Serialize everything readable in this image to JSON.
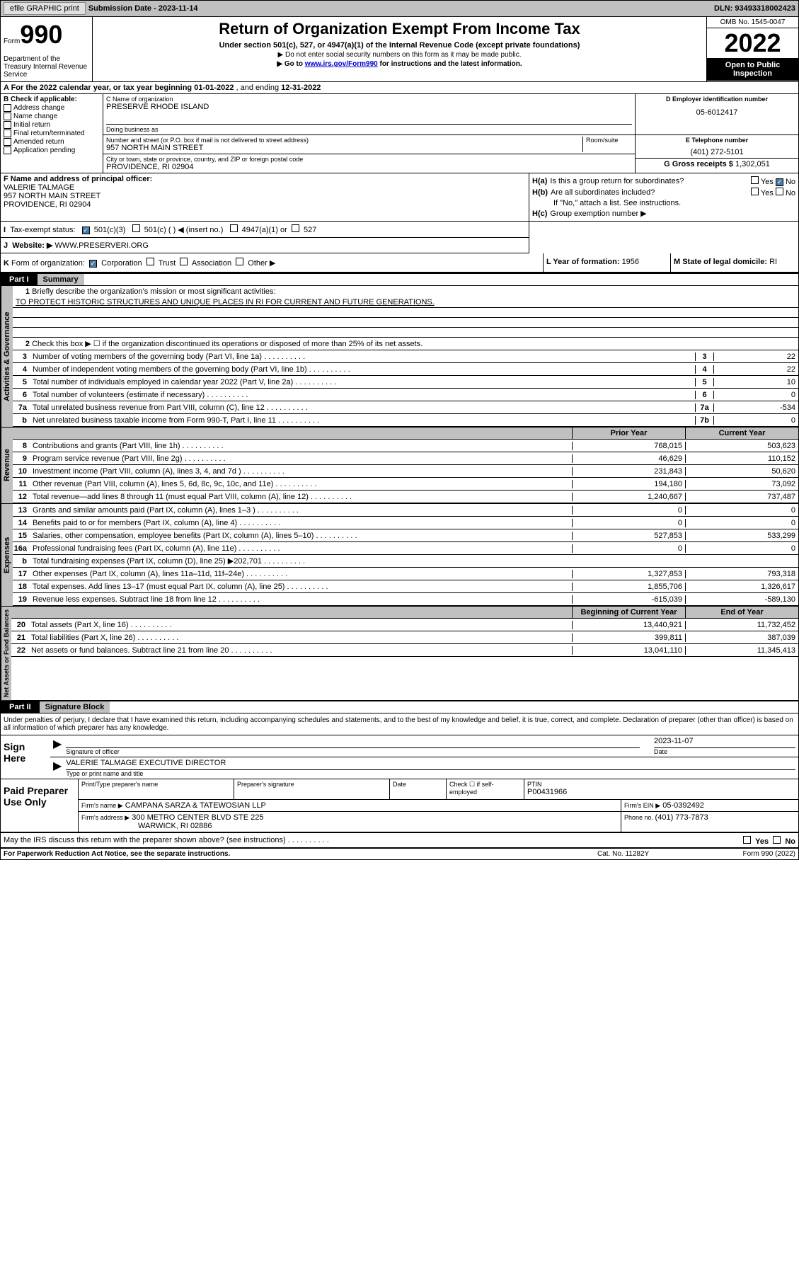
{
  "top": {
    "efile": "efile GRAPHIC print",
    "submission_label": "Submission Date - ",
    "submission_date": "2023-11-14",
    "dln_label": "DLN: ",
    "dln": "93493318002423"
  },
  "header": {
    "form_label": "Form",
    "form_num": "990",
    "title": "Return of Organization Exempt From Income Tax",
    "subtitle": "Under section 501(c), 527, or 4947(a)(1) of the Internal Revenue Code (except private foundations)",
    "note1": "▶ Do not enter social security numbers on this form as it may be made public.",
    "note2_pre": "▶ Go to ",
    "note2_link": "www.irs.gov/Form990",
    "note2_post": " for instructions and the latest information.",
    "dept": "Department of the Treasury Internal Revenue Service",
    "omb": "OMB No. 1545-0047",
    "year": "2022",
    "open_public": "Open to Public Inspection"
  },
  "rowA": {
    "text_pre": "A For the 2022 calendar year, or tax year beginning ",
    "begin": "01-01-2022",
    "mid": " , and ending ",
    "end": "12-31-2022"
  },
  "secB": {
    "label": "B Check if applicable:",
    "items": [
      "Address change",
      "Name change",
      "Initial return",
      "Final return/terminated",
      "Amended return",
      "Application pending"
    ]
  },
  "secC": {
    "label": "C Name of organization",
    "name": "PRESERVE RHODE ISLAND",
    "dba_label": "Doing business as",
    "street_label": "Number and street (or P.O. box if mail is not delivered to street address)",
    "room_label": "Room/suite",
    "street": "957 NORTH MAIN STREET",
    "city_label": "City or town, state or province, country, and ZIP or foreign postal code",
    "city": "PROVIDENCE, RI  02904"
  },
  "secD": {
    "label": "D Employer identification number",
    "ein": "05-6012417"
  },
  "secE": {
    "label": "E Telephone number",
    "phone": "(401) 272-5101"
  },
  "secG": {
    "label": "G Gross receipts $ ",
    "amount": "1,302,051"
  },
  "secF": {
    "label": "F Name and address of principal officer:",
    "name": "VALERIE TALMAGE",
    "addr1": "957 NORTH MAIN STREET",
    "addr2": "PROVIDENCE, RI  02904"
  },
  "secH": {
    "a_label": "H(a)",
    "a_text": "Is this a group return for subordinates?",
    "b_label": "H(b)",
    "b_text": "Are all subordinates included?",
    "note": "If \"No,\" attach a list. See instructions.",
    "c_label": "H(c)",
    "c_text": "Group exemption number ▶",
    "yes": "Yes",
    "no": "No"
  },
  "rowI": {
    "label": "I",
    "text": "Tax-exempt status:",
    "opt1": "501(c)(3)",
    "opt2": "501(c) (  ) ◀ (insert no.)",
    "opt3": "4947(a)(1) or",
    "opt4": "527"
  },
  "rowJ": {
    "label": "J",
    "text": "Website: ▶",
    "url": "WWW.PRESERVERI.ORG"
  },
  "rowK": {
    "label": "K",
    "text": "Form of organization:",
    "opts": [
      "Corporation",
      "Trust",
      "Association",
      "Other ▶"
    ]
  },
  "rowL": {
    "label": "L Year of formation: ",
    "val": "1956"
  },
  "rowM": {
    "label": "M State of legal domicile: ",
    "val": "RI"
  },
  "partI": {
    "part": "Part I",
    "title": "Summary",
    "q1_label": "1",
    "q1_text": "Briefly describe the organization's mission or most significant activities:",
    "mission": "TO PROTECT HISTORIC STRUCTURES AND UNIQUE PLACES IN RI FOR CURRENT AND FUTURE GENERATIONS.",
    "q2_label": "2",
    "q2_text": "Check this box ▶ ☐ if the organization discontinued its operations or disposed of more than 25% of its net assets.",
    "gov_label": "Activities & Governance",
    "rev_label": "Revenue",
    "exp_label": "Expenses",
    "net_label": "Net Assets or Fund Balances",
    "lines_gov": [
      {
        "n": "3",
        "t": "Number of voting members of the governing body (Part VI, line 1a)",
        "box": "3",
        "v": "22"
      },
      {
        "n": "4",
        "t": "Number of independent voting members of the governing body (Part VI, line 1b)",
        "box": "4",
        "v": "22"
      },
      {
        "n": "5",
        "t": "Total number of individuals employed in calendar year 2022 (Part V, line 2a)",
        "box": "5",
        "v": "10"
      },
      {
        "n": "6",
        "t": "Total number of volunteers (estimate if necessary)",
        "box": "6",
        "v": "0"
      },
      {
        "n": "7a",
        "t": "Total unrelated business revenue from Part VIII, column (C), line 12",
        "box": "7a",
        "v": "-534"
      },
      {
        "n": "b",
        "t": "Net unrelated business taxable income from Form 990-T, Part I, line 11",
        "box": "7b",
        "v": "0"
      }
    ],
    "prior_hdr": "Prior Year",
    "curr_hdr": "Current Year",
    "lines_rev": [
      {
        "n": "8",
        "t": "Contributions and grants (Part VIII, line 1h)",
        "p": "768,015",
        "c": "503,623"
      },
      {
        "n": "9",
        "t": "Program service revenue (Part VIII, line 2g)",
        "p": "46,629",
        "c": "110,152"
      },
      {
        "n": "10",
        "t": "Investment income (Part VIII, column (A), lines 3, 4, and 7d )",
        "p": "231,843",
        "c": "50,620"
      },
      {
        "n": "11",
        "t": "Other revenue (Part VIII, column (A), lines 5, 6d, 8c, 9c, 10c, and 11e)",
        "p": "194,180",
        "c": "73,092"
      },
      {
        "n": "12",
        "t": "Total revenue—add lines 8 through 11 (must equal Part VIII, column (A), line 12)",
        "p": "1,240,667",
        "c": "737,487"
      }
    ],
    "lines_exp": [
      {
        "n": "13",
        "t": "Grants and similar amounts paid (Part IX, column (A), lines 1–3 )",
        "p": "0",
        "c": "0"
      },
      {
        "n": "14",
        "t": "Benefits paid to or for members (Part IX, column (A), line 4)",
        "p": "0",
        "c": "0"
      },
      {
        "n": "15",
        "t": "Salaries, other compensation, employee benefits (Part IX, column (A), lines 5–10)",
        "p": "527,853",
        "c": "533,299"
      },
      {
        "n": "16a",
        "t": "Professional fundraising fees (Part IX, column (A), line 11e)",
        "p": "0",
        "c": "0"
      },
      {
        "n": "b",
        "t": "Total fundraising expenses (Part IX, column (D), line 25) ▶202,701",
        "p": "",
        "c": ""
      },
      {
        "n": "17",
        "t": "Other expenses (Part IX, column (A), lines 11a–11d, 11f–24e)",
        "p": "1,327,853",
        "c": "793,318"
      },
      {
        "n": "18",
        "t": "Total expenses. Add lines 13–17 (must equal Part IX, column (A), line 25)",
        "p": "1,855,706",
        "c": "1,326,617"
      },
      {
        "n": "19",
        "t": "Revenue less expenses. Subtract line 18 from line 12",
        "p": "-615,039",
        "c": "-589,130"
      }
    ],
    "begin_hdr": "Beginning of Current Year",
    "end_hdr": "End of Year",
    "lines_net": [
      {
        "n": "20",
        "t": "Total assets (Part X, line 16)",
        "p": "13,440,921",
        "c": "11,732,452"
      },
      {
        "n": "21",
        "t": "Total liabilities (Part X, line 26)",
        "p": "399,811",
        "c": "387,039"
      },
      {
        "n": "22",
        "t": "Net assets or fund balances. Subtract line 21 from line 20",
        "p": "13,041,110",
        "c": "11,345,413"
      }
    ]
  },
  "partII": {
    "part": "Part II",
    "title": "Signature Block",
    "decl": "Under penalties of perjury, I declare that I have examined this return, including accompanying schedules and statements, and to the best of my knowledge and belief, it is true, correct, and complete. Declaration of preparer (other than officer) is based on all information of which preparer has any knowledge.",
    "sign_here": "Sign Here",
    "sig_officer": "Signature of officer",
    "date_label": "Date",
    "sig_date": "2023-11-07",
    "officer_name": "VALERIE TALMAGE  EXECUTIVE DIRECTOR",
    "type_name": "Type or print name and title",
    "paid_label": "Paid Preparer Use Only",
    "prep_name_label": "Print/Type preparer's name",
    "prep_sig_label": "Preparer's signature",
    "check_if": "Check ☐ if self-employed",
    "ptin_label": "PTIN",
    "ptin": "P00431966",
    "firm_name_label": "Firm's name    ▶",
    "firm_name": "CAMPANA SARZA & TATEWOSIAN LLP",
    "firm_ein_label": "Firm's EIN ▶",
    "firm_ein": "05-0392492",
    "firm_addr_label": "Firm's address ▶",
    "firm_addr1": "300 METRO CENTER BLVD STE 225",
    "firm_addr2": "WARWICK, RI  02886",
    "phone_label": "Phone no. ",
    "phone": "(401) 773-7873",
    "may_irs": "May the IRS discuss this return with the preparer shown above? (see instructions)"
  },
  "footer": {
    "paperwork": "For Paperwork Reduction Act Notice, see the separate instructions.",
    "cat": "Cat. No. 11282Y",
    "form": "Form 990 (2022)"
  }
}
